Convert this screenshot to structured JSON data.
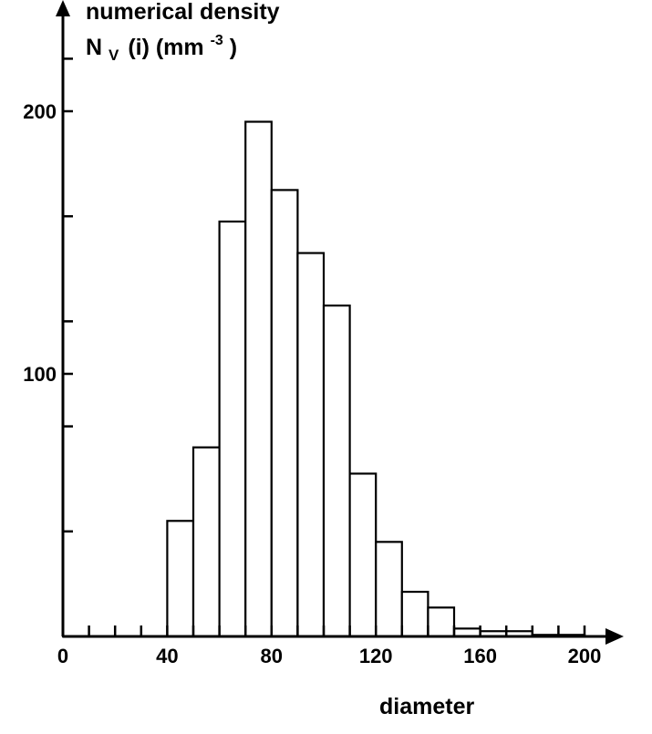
{
  "chart_data": {
    "type": "bar",
    "ylabel_line1": "numerical density",
    "ylabel_line2_main": "N",
    "ylabel_line2_sub": "V",
    "ylabel_line2_rest": "(i)  (mm",
    "ylabel_line2_sup": "-3",
    "ylabel_line2_close": ")",
    "xlabel": "diameter",
    "xlim": [
      0,
      200
    ],
    "ylim": [
      0,
      240
    ],
    "x_ticks": [
      0,
      10,
      20,
      30,
      40,
      50,
      60,
      70,
      80,
      90,
      100,
      110,
      120,
      130,
      140,
      150,
      160,
      170,
      180,
      190,
      200
    ],
    "x_tick_labels": [
      {
        "value": 0,
        "label": "0"
      },
      {
        "value": 40,
        "label": "40"
      },
      {
        "value": 80,
        "label": "80"
      },
      {
        "value": 120,
        "label": "120"
      },
      {
        "value": 160,
        "label": "160"
      },
      {
        "value": 200,
        "label": "200"
      }
    ],
    "y_ticks": [
      0,
      40,
      80,
      100,
      120,
      160,
      200,
      220
    ],
    "y_tick_labels": [
      {
        "value": 100,
        "label": "100"
      },
      {
        "value": 200,
        "label": "200"
      }
    ],
    "bins": [
      {
        "x0": 40,
        "x1": 50,
        "value": 44
      },
      {
        "x0": 50,
        "x1": 60,
        "value": 72
      },
      {
        "x0": 60,
        "x1": 70,
        "value": 158
      },
      {
        "x0": 70,
        "x1": 80,
        "value": 196
      },
      {
        "x0": 80,
        "x1": 90,
        "value": 170
      },
      {
        "x0": 90,
        "x1": 100,
        "value": 146
      },
      {
        "x0": 100,
        "x1": 110,
        "value": 126
      },
      {
        "x0": 110,
        "x1": 120,
        "value": 62
      },
      {
        "x0": 120,
        "x1": 130,
        "value": 36
      },
      {
        "x0": 130,
        "x1": 140,
        "value": 17
      },
      {
        "x0": 140,
        "x1": 150,
        "value": 11
      },
      {
        "x0": 150,
        "x1": 160,
        "value": 3
      },
      {
        "x0": 160,
        "x1": 170,
        "value": 2
      },
      {
        "x0": 170,
        "x1": 180,
        "value": 2
      },
      {
        "x0": 180,
        "x1": 190,
        "value": 0.6
      },
      {
        "x0": 190,
        "x1": 200,
        "value": 0.6
      }
    ]
  }
}
